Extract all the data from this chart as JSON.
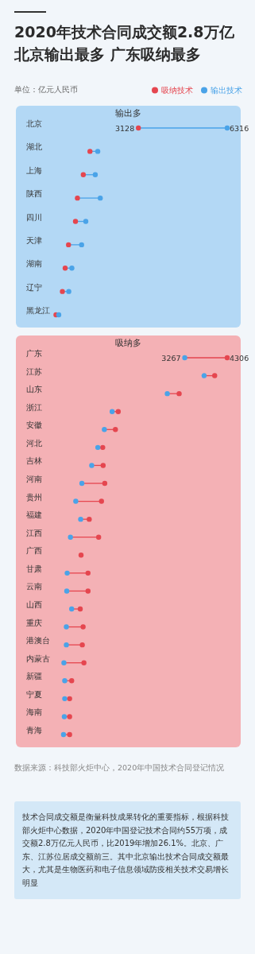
{
  "chart_data": [
    {
      "type": "scatter",
      "orientation": "horizontal",
      "marker": "circle",
      "legend": "top right",
      "title": "2020年技术合同成交额2.8万亿北京输出最多 广东吸纳最多",
      "subtitle": "输出多",
      "annotations": [
        "单位：亿元人民币"
      ],
      "categories": [
        "北京",
        "湖北",
        "上海",
        "陕西",
        "四川",
        "天津",
        "湖南",
        "辽宁",
        "黑龙江"
      ],
      "series": [
        {
          "name": "吸纳技术",
          "color": "#e5464f",
          "values": [
            3128,
            1390,
            1150,
            940,
            870,
            620,
            500,
            400,
            170
          ],
          "value_labels": [
            "3128",
            null,
            null,
            null,
            null,
            null,
            null,
            null,
            null
          ]
        },
        {
          "name": "输出技术",
          "color": "#4aa3e8",
          "values": [
            6316,
            1670,
            1580,
            1760,
            1240,
            1090,
            740,
            630,
            270
          ],
          "value_labels": [
            "6316",
            null,
            null,
            null,
            null,
            null,
            null,
            null,
            null
          ]
        }
      ]
    },
    {
      "type": "scatter",
      "orientation": "horizontal",
      "marker": "circle",
      "title": "吸纳多",
      "annotations": [
        "数据来源：科技部火炬中心，2020年中国技术合同登记情况",
        "技术合同成交额是衡量科技成果转化的重要指标，根据科技部火炬中心数据，2020年中国登记技术合同约55万项，成交额2.8万亿元人民币，比2019年增加26.1%。北京、广东、江苏位居成交额前三。其中北京输出技术合同成交额最大，尤其是生物医药和电子信息领域防疫相关技术交易增长明显"
      ],
      "categories": [
        "广东",
        "江苏",
        "山东",
        "浙江",
        "安徽",
        "河北",
        "吉林",
        "河南",
        "贵州",
        "福建",
        "江西",
        "广西",
        "甘肃",
        "云南",
        "山西",
        "重庆",
        "港澳台",
        "内蒙古",
        "新疆",
        "宁夏",
        "海南",
        "青海"
      ],
      "series": [
        {
          "color": "#e5464f",
          "values": [
            4306,
            4000,
            3130,
            1640,
            1570,
            1260,
            1270,
            1310,
            1230,
            930,
            1160,
            730,
            900,
            900,
            710,
            780,
            760,
            800,
            500,
            450,
            450,
            450
          ],
          "value_labels": [
            "4306",
            null,
            null,
            null,
            null,
            null,
            null,
            null,
            null,
            null,
            null,
            null,
            null,
            null,
            null,
            null,
            null,
            null,
            null,
            null,
            null,
            null
          ]
        },
        {
          "color": "#4aa3e8",
          "values": [
            3267,
            3740,
            2840,
            1490,
            1300,
            1140,
            990,
            750,
            600,
            720,
            470,
            null,
            390,
            380,
            500,
            370,
            370,
            310,
            330,
            330,
            320,
            300
          ],
          "value_labels": [
            "3267",
            null,
            null,
            null,
            null,
            null,
            null,
            null,
            null,
            null,
            null,
            null,
            null,
            null,
            null,
            null,
            null,
            null,
            null,
            null,
            null,
            null
          ]
        }
      ]
    }
  ]
}
